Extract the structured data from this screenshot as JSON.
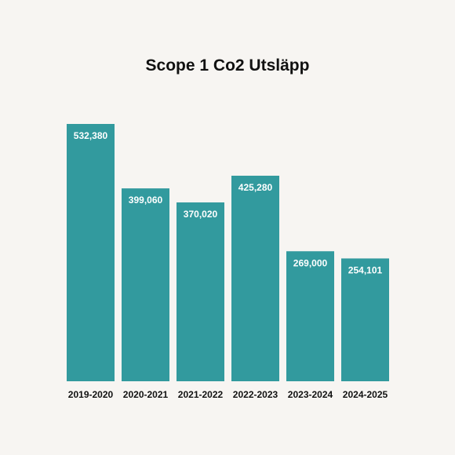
{
  "chart_data": {
    "type": "bar",
    "title": "Scope 1 Co2 Utsläpp",
    "categories": [
      "2019-2020",
      "2020-2021",
      "2021-2022",
      "2022-2023",
      "2023-2024",
      "2024-2025"
    ],
    "values": [
      532380,
      399060,
      370020,
      425280,
      269000,
      254101
    ],
    "value_labels": [
      "532,380",
      "399,060",
      "370,020",
      "425,280",
      "269,000",
      "254,101"
    ],
    "xlabel": "",
    "ylabel": "",
    "ylim": [
      0,
      532380
    ],
    "grid": false,
    "legend": "none",
    "bar_color": "#329a9e"
  }
}
